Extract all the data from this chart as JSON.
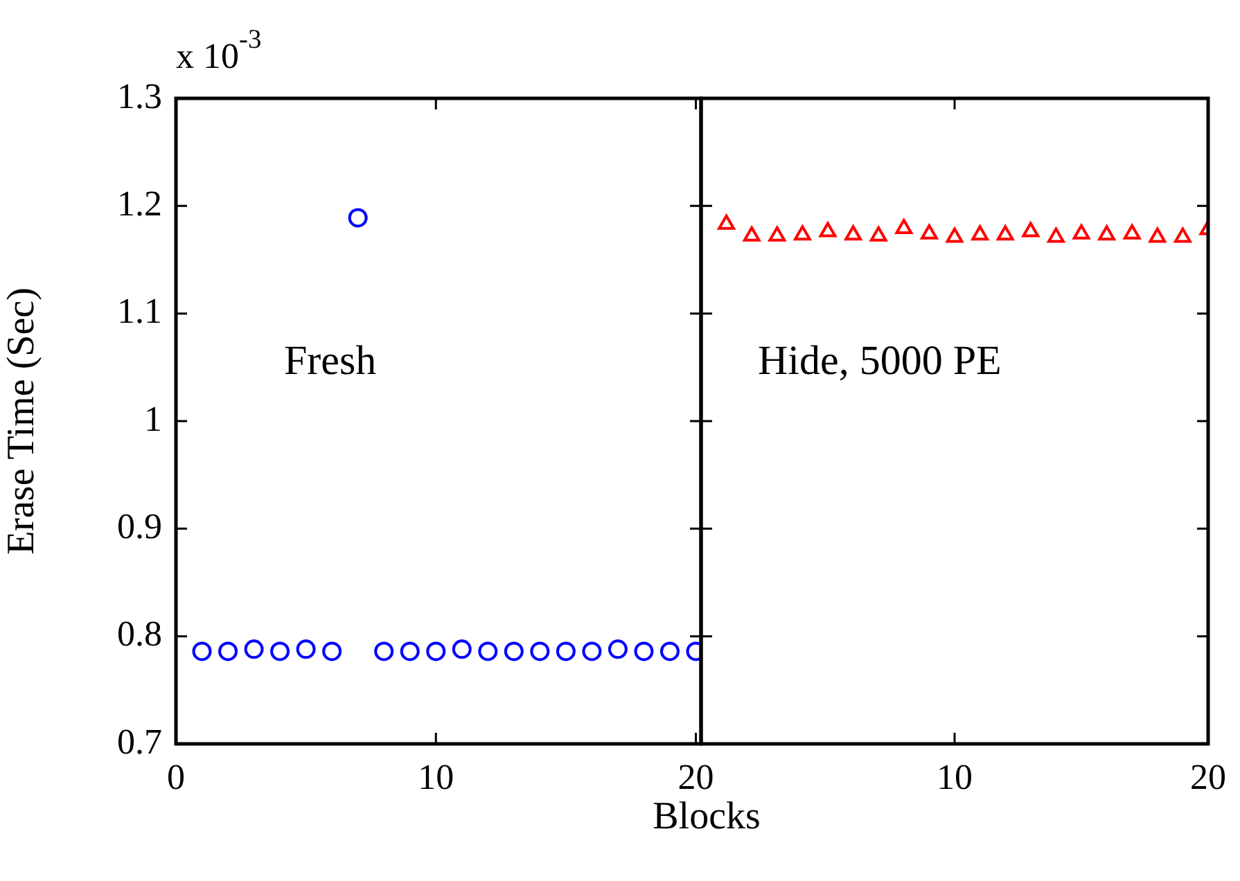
{
  "chart_data": [
    {
      "type": "scatter",
      "xlabel": "Blocks",
      "ylabel": "Erase Time (Sec)",
      "annotations": [
        "x 10$^{-3}$",
        "Fresh"
      ],
      "series": [
        {
          "color": "#0000ff",
          "marker": "circle",
          "x": [
            1,
            2,
            3,
            4,
            5,
            6,
            7,
            8,
            9,
            10,
            11,
            12,
            13,
            14,
            15,
            16,
            17,
            18,
            19,
            20
          ],
          "values": [
            0.786,
            0.786,
            0.788,
            0.786,
            0.788,
            0.786,
            1.189,
            0.786,
            0.786,
            0.786,
            0.788,
            0.786,
            0.786,
            0.786,
            0.786,
            0.786,
            0.788,
            0.786,
            0.786,
            0.786
          ]
        }
      ],
      "xlim": [
        0,
        20.2
      ],
      "xticks": [
        0,
        10,
        20
      ],
      "ylim": [
        0.7,
        1.3
      ],
      "yticks": [
        0.7,
        0.8,
        0.9,
        1,
        1.1,
        1.2,
        1.3
      ],
      "grid": false,
      "legend": false
    },
    {
      "type": "scatter",
      "annotations": [
        "Hide, 5000 PE"
      ],
      "series": [
        {
          "color": "#ff0000",
          "marker": "triangle",
          "x": [
            1,
            2,
            3,
            4,
            5,
            6,
            7,
            8,
            9,
            10,
            11,
            12,
            13,
            14,
            15,
            16,
            17,
            18,
            19,
            20
          ],
          "values": [
            1.183,
            1.172,
            1.172,
            1.173,
            1.176,
            1.173,
            1.172,
            1.179,
            1.174,
            1.171,
            1.173,
            1.173,
            1.176,
            1.171,
            1.174,
            1.173,
            1.174,
            1.171,
            1.171,
            1.178
          ]
        }
      ],
      "xlim": [
        0,
        20
      ],
      "xticks": [
        10,
        20
      ],
      "ylim": [
        0.7,
        1.3
      ],
      "yticks": [
        0.7,
        0.8,
        0.9,
        1,
        1.1,
        1.2,
        1.3
      ],
      "tick_labels": "x",
      "grid": false,
      "legend": false
    }
  ]
}
